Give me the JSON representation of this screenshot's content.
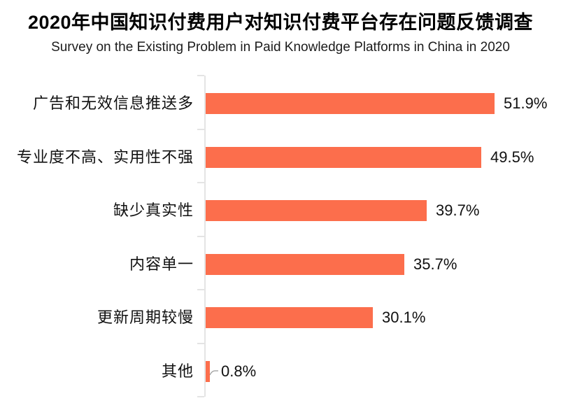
{
  "chart_data": {
    "type": "bar",
    "orientation": "horizontal",
    "title": "2020年中国知识付费用户对知识付费平台存在问题反馈调查",
    "subtitle": "Survey on the Existing Problem in Paid Knowledge Platforms in China in 2020",
    "categories": [
      "广告和无效信息推送多",
      "专业度不高、实用性不强",
      "缺少真实性",
      "内容单一",
      "更新周期较慢",
      "其他"
    ],
    "values": [
      51.9,
      49.5,
      39.7,
      35.7,
      30.1,
      0.8
    ],
    "value_labels": [
      "51.9%",
      "49.5%",
      "39.7%",
      "35.7%",
      "30.1%",
      "0.8%"
    ],
    "xlabel": "",
    "ylabel": "",
    "xlim": [
      0,
      62
    ],
    "grid": false,
    "legend": false,
    "bar_color": "#fc6e4c",
    "axis_color": "#e4e4e4",
    "leader_color": "#999999",
    "text_color": "#111111"
  }
}
